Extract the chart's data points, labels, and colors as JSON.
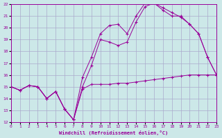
{
  "xlabel": "Windchill (Refroidissement éolien,°C)",
  "background_color": "#cce8e8",
  "grid_color": "#aaaacc",
  "line_color": "#990099",
  "xlim": [
    0,
    23
  ],
  "ylim": [
    12,
    22
  ],
  "xticks": [
    0,
    1,
    2,
    3,
    4,
    5,
    6,
    7,
    8,
    9,
    10,
    11,
    12,
    13,
    14,
    15,
    16,
    17,
    18,
    19,
    20,
    21,
    22,
    23
  ],
  "yticks": [
    12,
    13,
    14,
    15,
    16,
    17,
    18,
    19,
    20,
    21,
    22
  ],
  "series1_x": [
    0,
    1,
    2,
    3,
    4,
    5,
    6,
    7,
    8,
    9,
    10,
    11,
    12,
    13,
    14,
    15,
    16,
    17,
    18,
    19,
    20,
    21,
    22,
    23
  ],
  "series1_y": [
    15.0,
    14.7,
    15.1,
    15.0,
    14.0,
    14.6,
    13.1,
    12.2,
    14.8,
    15.2,
    15.2,
    15.2,
    15.3,
    15.3,
    15.4,
    15.5,
    15.6,
    15.7,
    15.8,
    15.9,
    16.0,
    16.0,
    16.0,
    16.0
  ],
  "series2_x": [
    0,
    1,
    2,
    3,
    4,
    5,
    6,
    7,
    8,
    9,
    10,
    11,
    12,
    13,
    14,
    15,
    16,
    17,
    18,
    19,
    20,
    21,
    22,
    23
  ],
  "series2_y": [
    15.0,
    14.7,
    15.1,
    15.0,
    14.0,
    14.6,
    13.1,
    12.2,
    15.0,
    16.8,
    19.0,
    18.8,
    18.5,
    18.8,
    20.5,
    21.8,
    22.1,
    21.7,
    21.3,
    20.9,
    20.3,
    19.5,
    17.5,
    16.0
  ],
  "series3_x": [
    0,
    1,
    2,
    3,
    4,
    5,
    6,
    7,
    8,
    9,
    10,
    11,
    12,
    13,
    14,
    15,
    16,
    17,
    18,
    19,
    20,
    21,
    22,
    23
  ],
  "series3_y": [
    15.0,
    14.7,
    15.1,
    15.0,
    14.0,
    14.6,
    13.1,
    12.2,
    15.8,
    17.5,
    19.5,
    20.2,
    20.3,
    19.5,
    21.0,
    22.1,
    22.1,
    21.5,
    21.0,
    21.0,
    20.3,
    19.5,
    17.5,
    16.0
  ]
}
